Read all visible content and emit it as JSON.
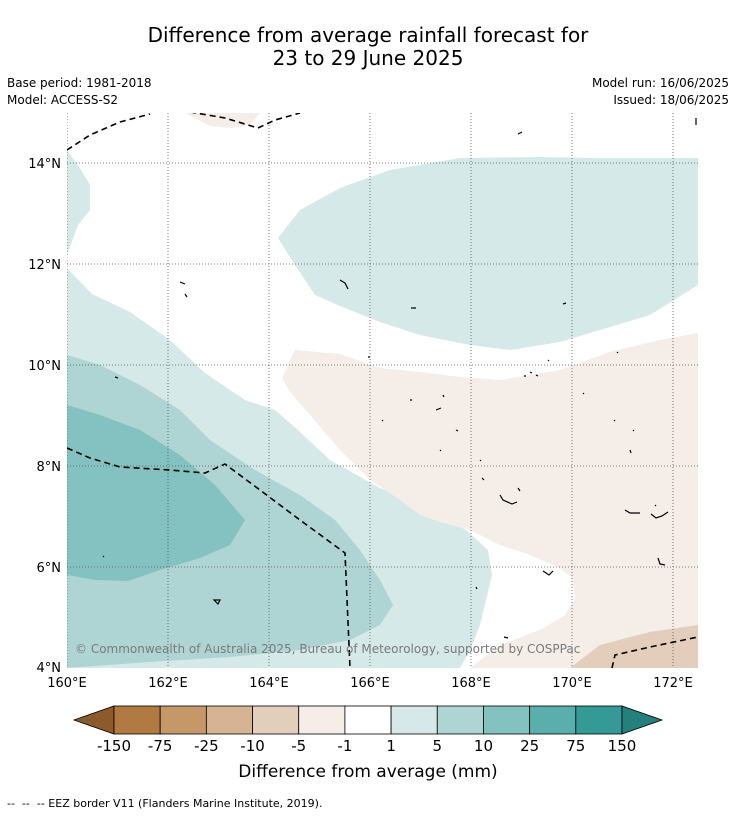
{
  "title": {
    "line1": "Difference from average rainfall forecast for",
    "line2": "23 to 29 June 2025"
  },
  "meta": {
    "base_period": "Base period: 1981-2018",
    "model": "Model: ACCESS-S2",
    "model_run": "Model run: 16/06/2025",
    "issued": "Issued: 18/06/2025"
  },
  "map": {
    "lon_range": [
      160,
      172.5
    ],
    "lat_range": [
      4,
      15
    ],
    "lon_ticks": [
      {
        "value": 160,
        "label": "160°E"
      },
      {
        "value": 162,
        "label": "162°E"
      },
      {
        "value": 164,
        "label": "164°E"
      },
      {
        "value": 166,
        "label": "166°E"
      },
      {
        "value": 168,
        "label": "168°E"
      },
      {
        "value": 170,
        "label": "170°E"
      },
      {
        "value": 172,
        "label": "172°E"
      }
    ],
    "lat_ticks": [
      {
        "value": 4,
        "label": "4°N"
      },
      {
        "value": 6,
        "label": "6°N"
      },
      {
        "value": 8,
        "label": "8°N"
      },
      {
        "value": 10,
        "label": "10°N"
      },
      {
        "value": 12,
        "label": "12°N"
      },
      {
        "value": 14,
        "label": "14°N"
      }
    ],
    "copyright": "© Commonwealth of Australia 2025, Bureau of Meteorology, supported by COSPPac",
    "colors": {
      "wet_1_5": "#d5e9e8",
      "wet_5_10": "#aed5d4",
      "wet_10_25": "#84c2c1",
      "dry_1_5": "#f4ede8",
      "dry_5_10": "#e3cdbb"
    }
  },
  "colorbar": {
    "title": "Difference from average (mm)",
    "labels": [
      "-150",
      "-75",
      "-25",
      "-10",
      "-5",
      "-1",
      "1",
      "5",
      "10",
      "25",
      "75",
      "150"
    ],
    "colors": [
      "#8c5a2d",
      "#b07a42",
      "#c69868",
      "#d6b392",
      "#e3cdbb",
      "#f4ede8",
      "#ffffff",
      "#d5e9e8",
      "#aed5d4",
      "#84c2c1",
      "#5aaeac",
      "#359995",
      "#257f7c"
    ]
  },
  "footer": {
    "legend_text": "--  --  -- EEZ border V11 (Flanders Marine Institute, 2019)."
  }
}
